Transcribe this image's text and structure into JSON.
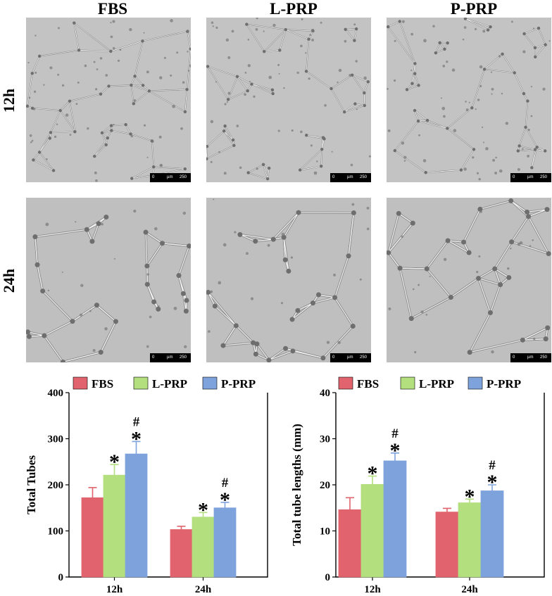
{
  "columns": [
    "FBS",
    "L-PRP",
    "P-PRP"
  ],
  "rows": [
    "12h",
    "24h"
  ],
  "scalebar": {
    "start": "0",
    "unit": "µm",
    "end": "250"
  },
  "colors": {
    "FBS": "#e0636d",
    "L-PRP": "#b3df7f",
    "P-PRP": "#7ea3dc"
  },
  "chart_data": [
    {
      "type": "bar",
      "categories": [
        "12h",
        "24h"
      ],
      "series": [
        {
          "name": "FBS",
          "values": [
            172,
            103
          ],
          "errors": [
            22,
            7
          ]
        },
        {
          "name": "L-PRP",
          "values": [
            221,
            130
          ],
          "errors": [
            23,
            10
          ]
        },
        {
          "name": "P-PRP",
          "values": [
            267,
            150
          ],
          "errors": [
            27,
            12
          ]
        }
      ],
      "annotations": [
        {
          "category": "12h",
          "series": "L-PRP",
          "marks": [
            "*"
          ]
        },
        {
          "category": "12h",
          "series": "P-PRP",
          "marks": [
            "#",
            "*"
          ]
        },
        {
          "category": "24h",
          "series": "L-PRP",
          "marks": [
            "*"
          ]
        },
        {
          "category": "24h",
          "series": "P-PRP",
          "marks": [
            "#",
            "*"
          ]
        }
      ],
      "ylabel": "Total Tubes",
      "ylim": [
        0,
        400
      ],
      "yticks": [
        0,
        100,
        200,
        300,
        400
      ],
      "legend": "top"
    },
    {
      "type": "bar",
      "categories": [
        "12h",
        "24h"
      ],
      "series": [
        {
          "name": "FBS",
          "values": [
            14.6,
            14.1
          ],
          "errors": [
            2.6,
            0.8
          ]
        },
        {
          "name": "L-PRP",
          "values": [
            20.1,
            16.1
          ],
          "errors": [
            1.8,
            0.8
          ]
        },
        {
          "name": "P-PRP",
          "values": [
            25.2,
            18.7
          ],
          "errors": [
            1.7,
            1.3
          ]
        }
      ],
      "annotations": [
        {
          "category": "12h",
          "series": "L-PRP",
          "marks": [
            "*"
          ]
        },
        {
          "category": "12h",
          "series": "P-PRP",
          "marks": [
            "#",
            "*"
          ]
        },
        {
          "category": "24h",
          "series": "L-PRP",
          "marks": [
            "*"
          ]
        },
        {
          "category": "24h",
          "series": "P-PRP",
          "marks": [
            "#",
            "*"
          ]
        }
      ],
      "ylabel": "Total tube lengths (mm)",
      "ylim": [
        0,
        40
      ],
      "yticks": [
        0,
        10,
        20,
        30,
        40
      ],
      "legend": "top"
    }
  ]
}
